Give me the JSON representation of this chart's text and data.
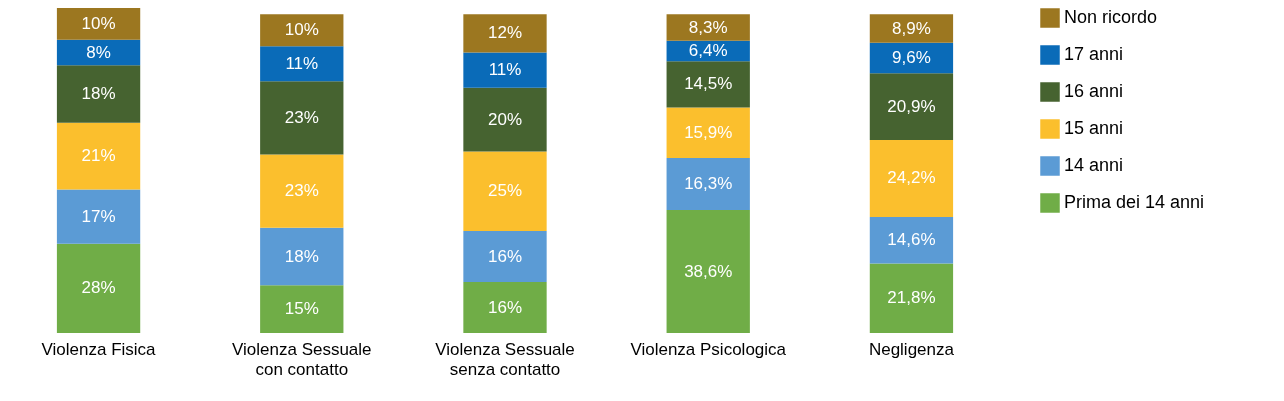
{
  "chart_data": {
    "type": "bar",
    "stacked": true,
    "legend": "right",
    "categories": [
      "Violenza Fisica",
      "Violenza Sessuale con contatto",
      "Violenza Sessuale senza contatto",
      "Violenza Psicologica",
      "Negligenza"
    ],
    "series": [
      {
        "name": "Prima dei 14 anni",
        "color": "#70ad47",
        "values": [
          28,
          15,
          16,
          38.6,
          21.8
        ],
        "value_labels": [
          "28%",
          "15%",
          "16%",
          "38,6%",
          "21,8%"
        ]
      },
      {
        "name": "14 anni",
        "color": "#5b9bd5",
        "values": [
          17,
          18,
          16,
          16.3,
          14.6
        ],
        "value_labels": [
          "17%",
          "18%",
          "16%",
          "16,3%",
          "14,6%"
        ]
      },
      {
        "name": "15 anni",
        "color": "#fbbf2d",
        "values": [
          21,
          23,
          25,
          15.9,
          24.2
        ],
        "value_labels": [
          "21%",
          "23%",
          "25%",
          "15,9%",
          "24,2%"
        ]
      },
      {
        "name": "16 anni",
        "color": "#466330",
        "values": [
          18,
          23,
          20,
          14.5,
          20.9
        ],
        "value_labels": [
          "18%",
          "23%",
          "20%",
          "14,5%",
          "20,9%"
        ]
      },
      {
        "name": "17 anni",
        "color": "#0a6bb8",
        "values": [
          8,
          11,
          11,
          6.4,
          9.6
        ],
        "value_labels": [
          "8%",
          "11%",
          "11%",
          "6,4%",
          "9,6%"
        ]
      },
      {
        "name": "Non ricordo",
        "color": "#9c7720",
        "values": [
          10,
          10,
          12,
          8.3,
          8.9
        ],
        "value_labels": [
          "10%",
          "10%",
          "12%",
          "8,3%",
          "8,9%"
        ]
      }
    ]
  }
}
